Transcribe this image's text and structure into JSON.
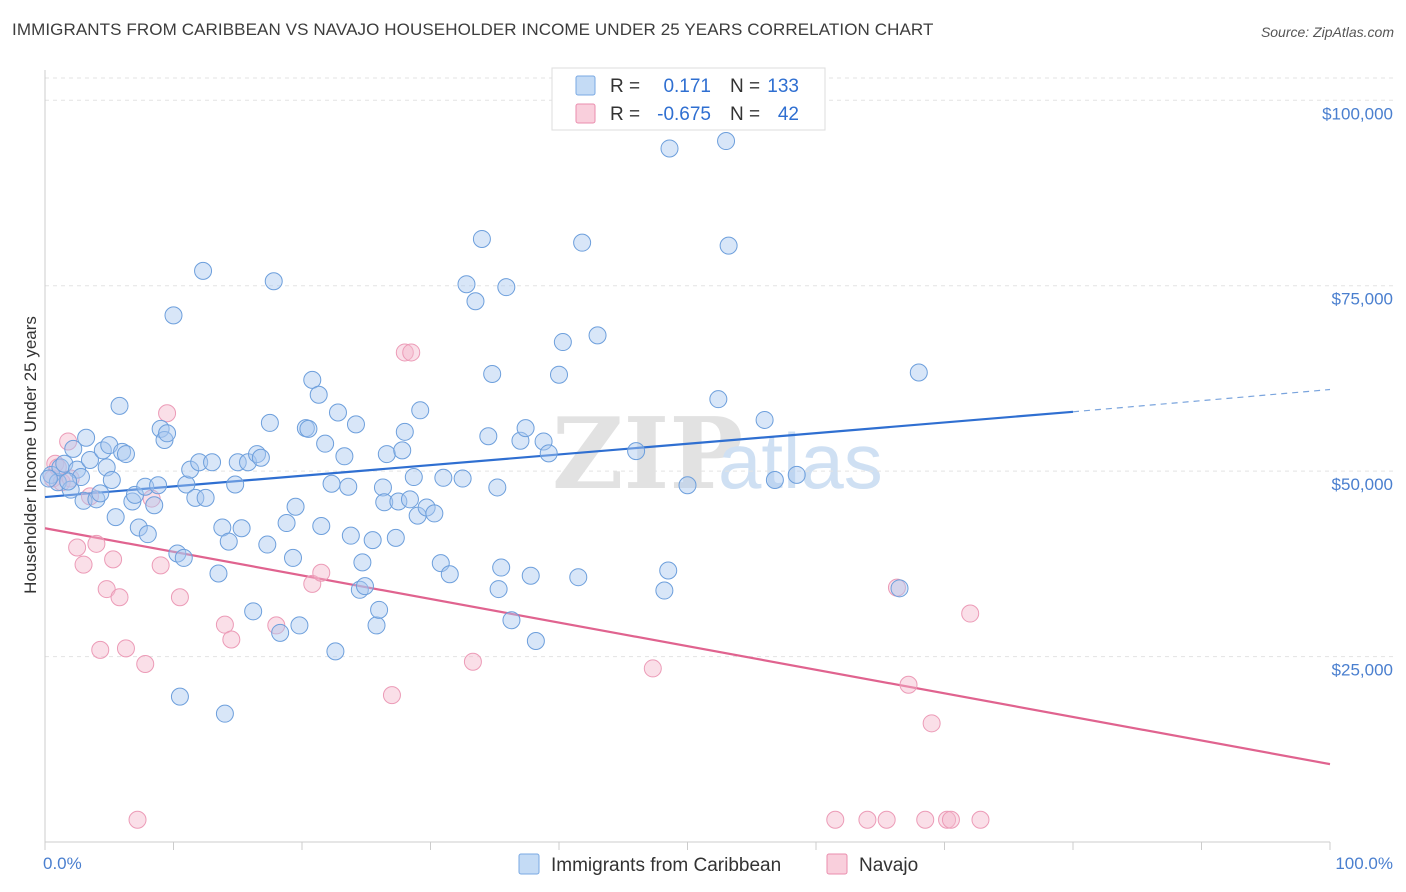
{
  "header": {
    "title": "IMMIGRANTS FROM CARIBBEAN VS NAVAJO HOUSEHOLDER INCOME UNDER 25 YEARS CORRELATION CHART",
    "source": "Source: ZipAtlas.com"
  },
  "watermark": {
    "zip": "ZIP",
    "atlas": "atlas"
  },
  "legend": {
    "rows": [
      {
        "r_label": "R =",
        "r_value": "0.171",
        "n_label": "N =",
        "n_value": "133",
        "color": "#a8c8f0"
      },
      {
        "r_label": "R =",
        "r_value": "-0.675",
        "n_label": "N =",
        "n_value": "42",
        "color": "#f5b8cb"
      }
    ]
  },
  "bottom_legend": {
    "items": [
      {
        "label": "Immigrants from Caribbean",
        "color": "#a8c8f0"
      },
      {
        "label": "Navajo",
        "color": "#f5b8cb"
      }
    ]
  },
  "chart_data": {
    "type": "scatter",
    "title": "IMMIGRANTS FROM CARIBBEAN VS NAVAJO HOUSEHOLDER INCOME UNDER 25 YEARS CORRELATION CHART",
    "xlabel": "",
    "ylabel": "Householder Income Under 25 years",
    "xlim": [
      0,
      100
    ],
    "ylim": [
      0,
      103000
    ],
    "x_tick_labels": [
      "0.0%",
      "100.0%"
    ],
    "y_ticks": [
      25000,
      50000,
      75000,
      100000
    ],
    "y_tick_labels": [
      "$25,000",
      "$50,000",
      "$75,000",
      "$100,000"
    ],
    "grid": true,
    "legend_position": "top-center",
    "colors": {
      "caribbean": "#4a86d8",
      "caribbean_fill": "#a8c8f0",
      "navajo": "#e8709a",
      "navajo_fill": "#f5b8cb"
    },
    "series": [
      {
        "name": "Immigrants from Caribbean",
        "points": [
          [
            0.5,
            49500
          ],
          [
            1.0,
            48500
          ],
          [
            1.2,
            50500
          ],
          [
            1.5,
            51000
          ],
          [
            2.0,
            47500
          ],
          [
            2.2,
            53000
          ],
          [
            2.5,
            50200
          ],
          [
            2.8,
            49200
          ],
          [
            3.0,
            46000
          ],
          [
            3.2,
            54500
          ],
          [
            3.5,
            51500
          ],
          [
            4.0,
            46200
          ],
          [
            4.3,
            47000
          ],
          [
            4.5,
            52800
          ],
          [
            4.8,
            50500
          ],
          [
            5.0,
            53500
          ],
          [
            5.2,
            48800
          ],
          [
            5.5,
            43800
          ],
          [
            5.8,
            58800
          ],
          [
            6.0,
            52600
          ],
          [
            6.3,
            52300
          ],
          [
            6.8,
            45900
          ],
          [
            7.0,
            46800
          ],
          [
            7.3,
            42400
          ],
          [
            7.8,
            47900
          ],
          [
            8.0,
            41500
          ],
          [
            8.5,
            45400
          ],
          [
            8.8,
            48100
          ],
          [
            9.0,
            55700
          ],
          [
            9.3,
            54200
          ],
          [
            9.5,
            55100
          ],
          [
            10.0,
            71000
          ],
          [
            10.3,
            38900
          ],
          [
            10.5,
            19600
          ],
          [
            10.8,
            38300
          ],
          [
            11.0,
            48200
          ],
          [
            11.3,
            50200
          ],
          [
            11.7,
            46400
          ],
          [
            12.0,
            51200
          ],
          [
            12.3,
            77000
          ],
          [
            12.5,
            46400
          ],
          [
            13.0,
            51200
          ],
          [
            13.5,
            36200
          ],
          [
            13.8,
            42400
          ],
          [
            14.0,
            17300
          ],
          [
            14.3,
            40500
          ],
          [
            14.8,
            48200
          ],
          [
            15.0,
            51200
          ],
          [
            15.3,
            42300
          ],
          [
            15.8,
            51200
          ],
          [
            16.2,
            31100
          ],
          [
            16.5,
            52300
          ],
          [
            16.8,
            51800
          ],
          [
            17.3,
            40100
          ],
          [
            17.5,
            56500
          ],
          [
            17.8,
            75600
          ],
          [
            18.3,
            28200
          ],
          [
            18.8,
            43000
          ],
          [
            19.3,
            38300
          ],
          [
            19.5,
            45200
          ],
          [
            19.8,
            29200
          ],
          [
            20.3,
            55800
          ],
          [
            20.5,
            55700
          ],
          [
            20.8,
            62300
          ],
          [
            21.3,
            60300
          ],
          [
            21.5,
            42600
          ],
          [
            21.8,
            53700
          ],
          [
            22.3,
            48300
          ],
          [
            22.6,
            25700
          ],
          [
            22.8,
            57900
          ],
          [
            23.3,
            52000
          ],
          [
            23.6,
            47900
          ],
          [
            23.8,
            41300
          ],
          [
            24.2,
            56300
          ],
          [
            24.5,
            34000
          ],
          [
            24.7,
            37700
          ],
          [
            24.9,
            34500
          ],
          [
            25.5,
            40700
          ],
          [
            25.8,
            29200
          ],
          [
            26.0,
            31300
          ],
          [
            26.3,
            47800
          ],
          [
            26.4,
            45800
          ],
          [
            26.6,
            52300
          ],
          [
            27.3,
            41000
          ],
          [
            27.5,
            45900
          ],
          [
            27.8,
            52800
          ],
          [
            28.0,
            55300
          ],
          [
            28.4,
            46200
          ],
          [
            28.7,
            49200
          ],
          [
            29.0,
            44000
          ],
          [
            29.2,
            58200
          ],
          [
            29.7,
            45100
          ],
          [
            30.3,
            44300
          ],
          [
            30.8,
            37600
          ],
          [
            31.0,
            49100
          ],
          [
            31.5,
            36100
          ],
          [
            32.5,
            49000
          ],
          [
            32.8,
            75200
          ],
          [
            33.5,
            72900
          ],
          [
            34.0,
            81300
          ],
          [
            34.5,
            54700
          ],
          [
            34.8,
            63100
          ],
          [
            35.2,
            47800
          ],
          [
            35.3,
            34100
          ],
          [
            35.5,
            37000
          ],
          [
            35.9,
            74800
          ],
          [
            36.3,
            29900
          ],
          [
            37.0,
            54100
          ],
          [
            37.4,
            55800
          ],
          [
            37.8,
            35900
          ],
          [
            38.2,
            27100
          ],
          [
            38.8,
            54000
          ],
          [
            39.2,
            52400
          ],
          [
            40.0,
            63000
          ],
          [
            40.3,
            67400
          ],
          [
            41.5,
            35700
          ],
          [
            41.8,
            80800
          ],
          [
            43.0,
            68300
          ],
          [
            46.0,
            52700
          ],
          [
            48.2,
            33900
          ],
          [
            48.5,
            36600
          ],
          [
            48.6,
            93500
          ],
          [
            50.0,
            48100
          ],
          [
            52.4,
            59700
          ],
          [
            53.0,
            94500
          ],
          [
            53.2,
            80400
          ],
          [
            56.0,
            56900
          ],
          [
            56.8,
            48800
          ],
          [
            58.5,
            49500
          ],
          [
            66.5,
            34200
          ],
          [
            68.0,
            63300
          ],
          [
            0.3,
            49000
          ],
          [
            1.8,
            48600
          ]
        ],
        "trend": {
          "x0": 0,
          "y0": 46500,
          "x1": 80,
          "y1": 58000,
          "dash_to_x": 100,
          "dash_to_y": 61000
        }
      },
      {
        "name": "Navajo",
        "points": [
          [
            0.6,
            49000
          ],
          [
            0.8,
            51000
          ],
          [
            1.0,
            50500
          ],
          [
            1.3,
            48500
          ],
          [
            1.8,
            54000
          ],
          [
            2.0,
            49000
          ],
          [
            2.5,
            39700
          ],
          [
            3.0,
            37400
          ],
          [
            3.5,
            46600
          ],
          [
            4.0,
            40200
          ],
          [
            4.3,
            25900
          ],
          [
            4.8,
            34100
          ],
          [
            5.3,
            38100
          ],
          [
            5.8,
            33000
          ],
          [
            6.3,
            26100
          ],
          [
            7.2,
            3000
          ],
          [
            7.8,
            24000
          ],
          [
            8.3,
            46300
          ],
          [
            9.0,
            37300
          ],
          [
            9.5,
            57800
          ],
          [
            10.5,
            33000
          ],
          [
            14.0,
            29300
          ],
          [
            14.5,
            27300
          ],
          [
            18.0,
            29200
          ],
          [
            20.8,
            34800
          ],
          [
            21.5,
            36300
          ],
          [
            27.0,
            19800
          ],
          [
            28.0,
            66000
          ],
          [
            28.5,
            66000
          ],
          [
            33.3,
            24300
          ],
          [
            47.3,
            23400
          ],
          [
            61.5,
            3000
          ],
          [
            64.0,
            3000
          ],
          [
            65.5,
            3000
          ],
          [
            66.3,
            34300
          ],
          [
            67.2,
            21200
          ],
          [
            68.5,
            3000
          ],
          [
            69.0,
            16000
          ],
          [
            70.2,
            3000
          ],
          [
            70.5,
            3000
          ],
          [
            72.0,
            30800
          ],
          [
            72.8,
            3000
          ]
        ],
        "trend": {
          "x0": 0,
          "y0": 42300,
          "x1": 100,
          "y1": 10500
        }
      }
    ]
  }
}
